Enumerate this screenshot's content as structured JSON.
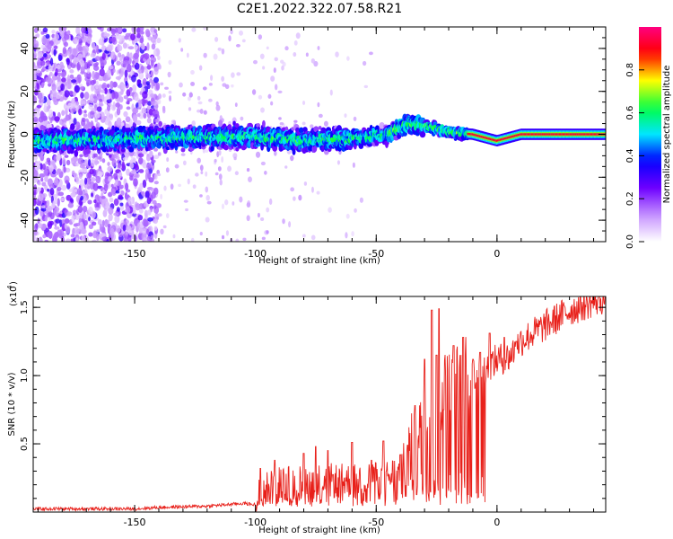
{
  "figure": {
    "title": "C2E1.2022.322.07.58.R21"
  },
  "chart_data": [
    {
      "type": "heatmap",
      "xlabel": "Height of straight line (km)",
      "ylabel": "Frequency (Hz)",
      "xlim": [
        -192,
        45
      ],
      "ylim": [
        -50,
        50
      ],
      "xticks": [
        -150,
        -100,
        -50,
        0
      ],
      "yticks": [
        40,
        20,
        0,
        -20,
        -40
      ],
      "colorbar": {
        "label": "Normalized spectral amplitude",
        "range": [
          0,
          1
        ],
        "ticks": [
          "0.0",
          "0.2",
          "0.4",
          "0.6",
          "0.8"
        ],
        "ticks_values": [
          0,
          0.2,
          0.4,
          0.6,
          0.8
        ],
        "colormap": [
          "#ffffff",
          "#6a00ff",
          "#0000ff",
          "#00e5ff",
          "#00ff40",
          "#ffff00",
          "#ff0000",
          "#ff0080"
        ]
      },
      "ridge_center_hz": {
        "x": [
          -192,
          -150,
          -100,
          -80,
          -60,
          -45,
          -37,
          -30,
          -20,
          -10,
          0,
          10,
          20,
          45
        ],
        "y": [
          -3,
          -2,
          -1,
          -3,
          -2,
          0,
          5,
          4,
          1,
          0,
          -3,
          0,
          0,
          0
        ]
      },
      "high_spread_region_x": [
        -192,
        -140
      ]
    },
    {
      "type": "line",
      "xlabel": "Height of straight line (km)",
      "ylabel": "SNR (10 * v/v)",
      "y_multiplier": "(x10",
      "y_multiplier_exp": "4",
      "y_multiplier_close": ")",
      "xlim": [
        -192,
        45
      ],
      "ylim": [
        0,
        1.58
      ],
      "xticks": [
        -150,
        -100,
        -50,
        0
      ],
      "yticks": [
        0.5,
        1.0,
        1.5
      ],
      "ytick_labels": [
        "0.5",
        "1.0",
        "1.5"
      ],
      "series": [
        {
          "color": "#e8201a",
          "envelope": {
            "x": [
              -192,
              -150,
              -140,
              -120,
              -105,
              -100,
              -95,
              -90,
              -80,
              -70,
              -60,
              -50,
              -45,
              -40,
              -35,
              -32,
              -28,
              -25,
              -20,
              -15,
              -10,
              -5,
              0,
              5,
              10,
              20,
              30,
              40,
              45
            ],
            "y": [
              0.02,
              0.02,
              0.03,
              0.04,
              0.06,
              0.05,
              0.14,
              0.17,
              0.18,
              0.19,
              0.19,
              0.21,
              0.22,
              0.26,
              0.35,
              0.6,
              0.82,
              0.75,
              0.82,
              0.85,
              0.97,
              1.02,
              1.08,
              1.1,
              1.22,
              1.33,
              1.44,
              1.51,
              1.53
            ]
          },
          "spikes": {
            "x": [
              -98,
              -92,
              -80,
              -75,
              -70,
              -60,
              -52,
              -47,
              -40,
              -37,
              -34,
              -30,
              -27,
              -25,
              -24,
              -22,
              -18,
              -14,
              -10,
              -7,
              -3,
              3,
              8
            ],
            "y": [
              0.32,
              0.38,
              0.43,
              0.48,
              0.45,
              0.51,
              0.38,
              0.52,
              0.42,
              0.49,
              0.78,
              1.12,
              1.48,
              1.15,
              1.49,
              0.75,
              1.22,
              1.28,
              1.12,
              1.17,
              1.31,
              1.28,
              1.25
            ]
          }
        }
      ]
    }
  ]
}
